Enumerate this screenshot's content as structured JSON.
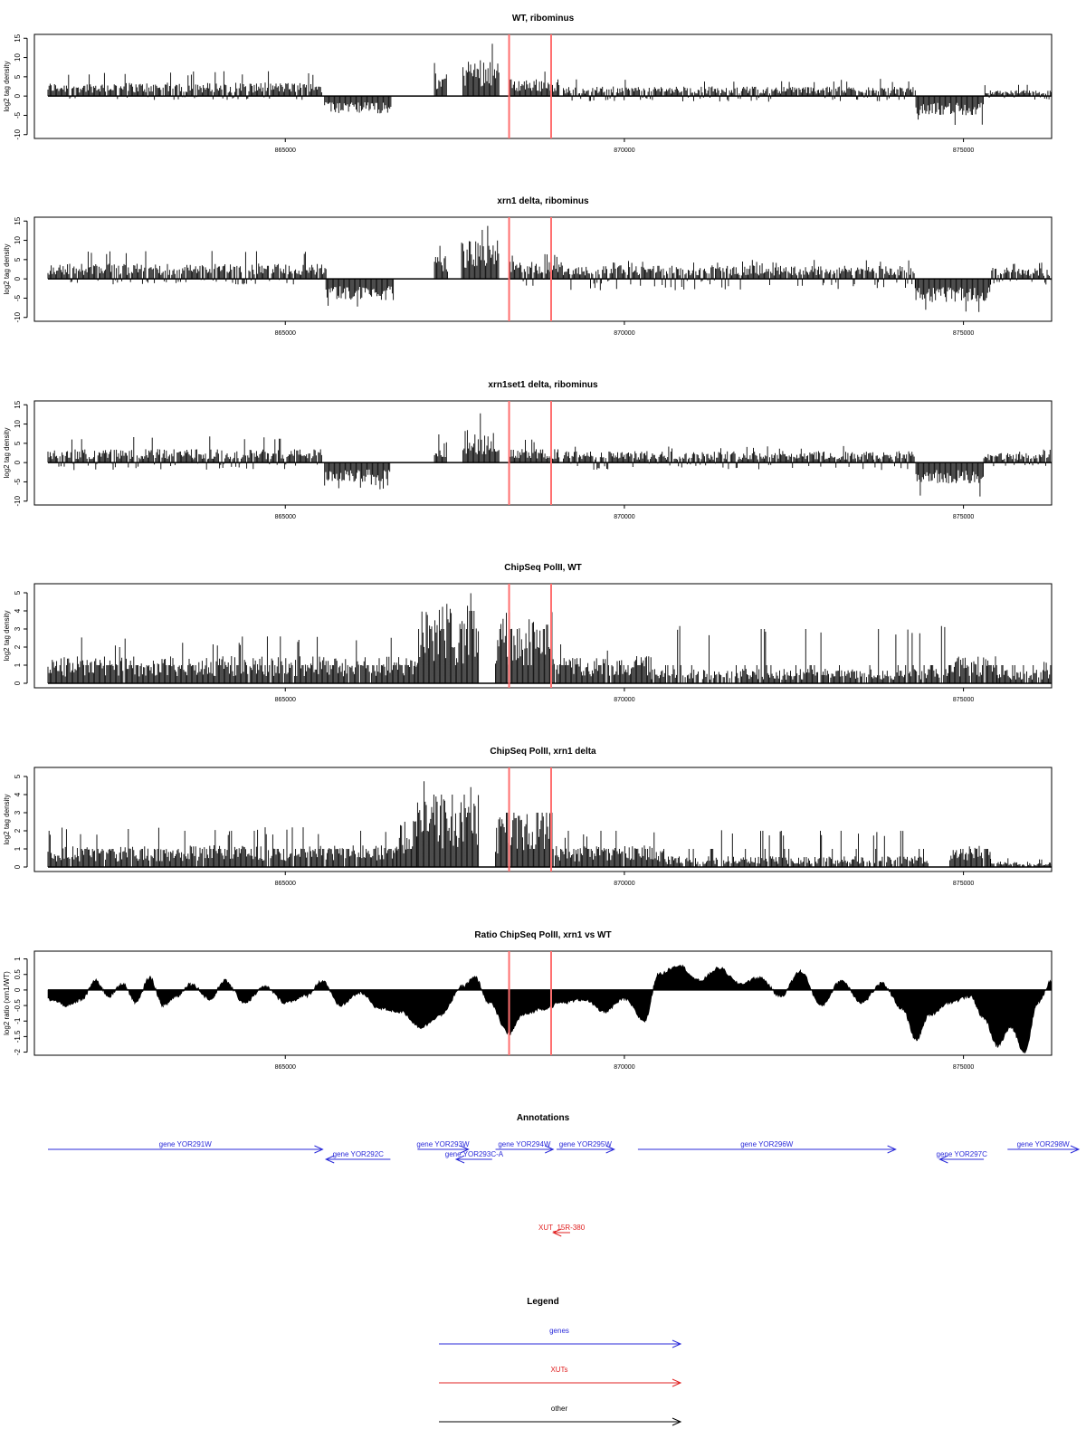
{
  "colors": {
    "signal": "#000000",
    "marker": "#ff6f6f",
    "gene": "#2a2ad9",
    "xut": "#e02020",
    "other": "#000000",
    "frame": "#000000"
  },
  "chart_data": [
    {
      "type": "bar",
      "title": "WT, ribominus",
      "ylabel": "log2 tag density",
      "ylim": [
        -11,
        16
      ],
      "yticks": [
        15,
        10,
        5,
        0,
        -5,
        -10
      ],
      "xlim": [
        861300,
        876300
      ],
      "xticks": [
        865000,
        870000,
        875000
      ],
      "markers": [
        868300,
        868920
      ],
      "segments": [
        {
          "x0": 861500,
          "x1": 865550,
          "min": -1.0,
          "max": 3.5,
          "peak": 6.5
        },
        {
          "x0": 865580,
          "x1": 866570,
          "min": -4.5,
          "max": 0.0,
          "peak": -5.5
        },
        {
          "x0": 867200,
          "x1": 867380,
          "min": 0.0,
          "max": 6.0,
          "peak": 9.0
        },
        {
          "x0": 867620,
          "x1": 868150,
          "min": 0.0,
          "max": 10.0,
          "peak": 15.0
        },
        {
          "x0": 868300,
          "x1": 869050,
          "min": 0.0,
          "max": 4.5,
          "peak": 7.0
        },
        {
          "x0": 869100,
          "x1": 874300,
          "min": -1.5,
          "max": 2.5,
          "peak": 4.5
        },
        {
          "x0": 874300,
          "x1": 875300,
          "min": -5.0,
          "max": 0.0,
          "peak": -7.5
        },
        {
          "x0": 875300,
          "x1": 876300,
          "min": -1.0,
          "max": 1.5,
          "peak": 3.0
        }
      ]
    },
    {
      "type": "bar",
      "title": "xrn1 delta, ribominus",
      "ylabel": "log2 tag density",
      "ylim": [
        -11,
        16
      ],
      "yticks": [
        15,
        10,
        5,
        0,
        -5,
        -10
      ],
      "xlim": [
        861300,
        876300
      ],
      "xticks": [
        865000,
        870000,
        875000
      ],
      "markers": [
        868300,
        868920
      ],
      "segments": [
        {
          "x0": 861500,
          "x1": 865600,
          "min": -1.5,
          "max": 4.0,
          "peak": 7.5
        },
        {
          "x0": 865600,
          "x1": 866600,
          "min": -5.5,
          "max": 0.0,
          "peak": -7.5
        },
        {
          "x0": 867200,
          "x1": 867400,
          "min": 0.0,
          "max": 6.5,
          "peak": 9.5
        },
        {
          "x0": 867600,
          "x1": 868150,
          "min": 0.0,
          "max": 10.0,
          "peak": 14.0
        },
        {
          "x0": 868300,
          "x1": 869100,
          "min": -2.0,
          "max": 4.5,
          "peak": 7.0
        },
        {
          "x0": 869100,
          "x1": 874300,
          "min": -3.0,
          "max": 3.5,
          "peak": 5.0
        },
        {
          "x0": 874300,
          "x1": 875400,
          "min": -6.0,
          "max": 0.0,
          "peak": -9.0
        },
        {
          "x0": 875400,
          "x1": 876300,
          "min": -1.5,
          "max": 3.0,
          "peak": 4.5
        }
      ]
    },
    {
      "type": "bar",
      "title": "xrn1set1 delta, ribominus",
      "ylabel": "log2 tag density",
      "ylim": [
        -11,
        16
      ],
      "yticks": [
        15,
        10,
        5,
        0,
        -5,
        -10
      ],
      "xlim": [
        861300,
        876300
      ],
      "xticks": [
        865000,
        870000,
        875000
      ],
      "markers": [
        868300,
        868920
      ],
      "segments": [
        {
          "x0": 861500,
          "x1": 865550,
          "min": -2.0,
          "max": 3.5,
          "peak": 7.0
        },
        {
          "x0": 865580,
          "x1": 866550,
          "min": -5.0,
          "max": 0.0,
          "peak": -7.0
        },
        {
          "x0": 867200,
          "x1": 867380,
          "min": 0.0,
          "max": 5.5,
          "peak": 8.5
        },
        {
          "x0": 867620,
          "x1": 868150,
          "min": 0.0,
          "max": 8.5,
          "peak": 13.0
        },
        {
          "x0": 868300,
          "x1": 869050,
          "min": 0.0,
          "max": 3.5,
          "peak": 6.0
        },
        {
          "x0": 869100,
          "x1": 874300,
          "min": -2.0,
          "max": 3.0,
          "peak": 4.5
        },
        {
          "x0": 874300,
          "x1": 875300,
          "min": -5.5,
          "max": 0.0,
          "peak": -9.5
        },
        {
          "x0": 875300,
          "x1": 876300,
          "min": -1.0,
          "max": 2.5,
          "peak": 3.5
        }
      ]
    },
    {
      "type": "bar",
      "title": "ChipSeq PolII, WT",
      "ylabel": "log2 tag density",
      "ylim": [
        -0.25,
        5.5
      ],
      "yticks": [
        5,
        4,
        3,
        2,
        1,
        0
      ],
      "xlim": [
        861300,
        876300
      ],
      "xticks": [
        865000,
        870000,
        875000
      ],
      "markers": [
        868300,
        868920
      ],
      "segments": [
        {
          "x0": 861500,
          "x1": 866950,
          "min": 0.0,
          "max": 1.5,
          "peak": 2.6
        },
        {
          "x0": 866950,
          "x1": 867850,
          "min": 0.0,
          "max": 4.3,
          "peak": 5.2
        },
        {
          "x0": 868100,
          "x1": 868950,
          "min": 0.0,
          "max": 3.6,
          "peak": 4.0
        },
        {
          "x0": 868950,
          "x1": 870400,
          "min": 0.0,
          "max": 1.5,
          "peak": 2.2
        },
        {
          "x0": 870400,
          "x1": 874800,
          "min": 0.0,
          "max": 0.8,
          "peak": 3.2
        },
        {
          "x0": 874800,
          "x1": 875500,
          "min": 0.0,
          "max": 1.5,
          "peak": 3.0
        },
        {
          "x0": 875500,
          "x1": 876300,
          "min": 0.0,
          "max": 0.8,
          "peak": 1.2
        }
      ]
    },
    {
      "type": "bar",
      "title": "ChipSeq PolII, xrn1 delta",
      "ylabel": "log2 tag density",
      "ylim": [
        -0.25,
        5.5
      ],
      "yticks": [
        5,
        4,
        3,
        2,
        1,
        0
      ],
      "xlim": [
        861300,
        876300
      ],
      "xticks": [
        865000,
        870000,
        875000
      ],
      "markers": [
        868300,
        868920
      ],
      "segments": [
        {
          "x0": 861500,
          "x1": 866650,
          "min": 0.0,
          "max": 1.2,
          "peak": 2.2
        },
        {
          "x0": 866650,
          "x1": 866950,
          "min": 0.0,
          "max": 1.8,
          "peak": 2.6
        },
        {
          "x0": 866950,
          "x1": 867850,
          "min": 0.0,
          "max": 4.0,
          "peak": 4.8
        },
        {
          "x0": 868100,
          "x1": 868950,
          "min": 0.0,
          "max": 3.0,
          "peak": 3.3
        },
        {
          "x0": 868950,
          "x1": 870600,
          "min": 0.0,
          "max": 1.2,
          "peak": 2.0
        },
        {
          "x0": 870600,
          "x1": 874500,
          "min": 0.0,
          "max": 0.6,
          "peak": 2.1
        },
        {
          "x0": 874800,
          "x1": 875400,
          "min": 0.0,
          "max": 1.2,
          "peak": 1.9
        },
        {
          "x0": 875400,
          "x1": 876300,
          "min": 0.0,
          "max": 0.3,
          "peak": 0.5
        }
      ]
    },
    {
      "type": "area",
      "title": "Ratio ChipSeq PolII, xrn1 vs WT",
      "ylabel": "log2 ratio (xrn1/WT)",
      "ylim": [
        -2.1,
        1.25
      ],
      "yticks": [
        1.0,
        0.5,
        0.0,
        -0.5,
        -1.0,
        -1.5,
        -2.0
      ],
      "xlim": [
        861300,
        876300
      ],
      "xticks": [
        865000,
        870000,
        875000
      ],
      "markers": [
        868300,
        868920
      ],
      "anchors": [
        [
          861500,
          -0.3
        ],
        [
          861800,
          -0.5
        ],
        [
          862000,
          -0.3
        ],
        [
          862200,
          0.3
        ],
        [
          862400,
          -0.2
        ],
        [
          862600,
          0.2
        ],
        [
          862800,
          -0.4
        ],
        [
          863000,
          0.4
        ],
        [
          863200,
          -0.5
        ],
        [
          863400,
          -0.2
        ],
        [
          863600,
          0.2
        ],
        [
          863900,
          -0.3
        ],
        [
          864100,
          0.3
        ],
        [
          864400,
          -0.4
        ],
        [
          864700,
          0.1
        ],
        [
          865000,
          -0.4
        ],
        [
          865300,
          -0.2
        ],
        [
          865550,
          0.3
        ],
        [
          865800,
          -0.5
        ],
        [
          866100,
          -0.1
        ],
        [
          866400,
          -0.6
        ],
        [
          866700,
          -0.7
        ],
        [
          867000,
          -1.2
        ],
        [
          867300,
          -0.8
        ],
        [
          867600,
          0.1
        ],
        [
          867800,
          0.4
        ],
        [
          868000,
          -0.4
        ],
        [
          868300,
          -1.4
        ],
        [
          868500,
          -0.8
        ],
        [
          868800,
          -0.6
        ],
        [
          869100,
          -0.4
        ],
        [
          869400,
          -0.3
        ],
        [
          869700,
          -0.7
        ],
        [
          870000,
          -0.3
        ],
        [
          870300,
          -1.0
        ],
        [
          870500,
          0.5
        ],
        [
          870800,
          0.8
        ],
        [
          871100,
          0.3
        ],
        [
          871400,
          0.7
        ],
        [
          871700,
          0.2
        ],
        [
          872000,
          0.4
        ],
        [
          872300,
          -0.2
        ],
        [
          872600,
          0.6
        ],
        [
          872900,
          -0.5
        ],
        [
          873200,
          0.3
        ],
        [
          873500,
          -0.4
        ],
        [
          873800,
          0.2
        ],
        [
          874100,
          -0.6
        ],
        [
          874300,
          -1.6
        ],
        [
          874500,
          -0.8
        ],
        [
          874800,
          -0.4
        ],
        [
          875100,
          -0.2
        ],
        [
          875300,
          -0.9
        ],
        [
          875500,
          -1.8
        ],
        [
          875700,
          -1.2
        ],
        [
          875900,
          -2.0
        ],
        [
          876100,
          -0.4
        ],
        [
          876300,
          0.3
        ]
      ]
    }
  ],
  "titles": [
    "WT, ribominus",
    "xrn1 delta, ribominus",
    "xrn1set1 delta, ribominus",
    "ChipSeq PolII, WT",
    "ChipSeq PolII, xrn1 delta",
    "Ratio ChipSeq PolII, xrn1 vs WT"
  ],
  "annotations": {
    "title": "Annotations",
    "genes": [
      {
        "label": "gene YOR291W",
        "x0": 861500,
        "x1": 865550,
        "dir": "right",
        "row": 0
      },
      {
        "label": "gene YOR292C",
        "x0": 865600,
        "x1": 866550,
        "dir": "left",
        "row": 1
      },
      {
        "label": "gene YOR293W",
        "x0": 866950,
        "x1": 867700,
        "dir": "right",
        "row": 0
      },
      {
        "label": "gene YOR293C-A",
        "x0": 867520,
        "x1": 868050,
        "dir": "left",
        "row": 1
      },
      {
        "label": "gene YOR294W",
        "x0": 868100,
        "x1": 868950,
        "dir": "right",
        "row": 0
      },
      {
        "label": "gene YOR295W",
        "x0": 869000,
        "x1": 869850,
        "dir": "right",
        "row": 0
      },
      {
        "label": "gene YOR296W",
        "x0": 870200,
        "x1": 874000,
        "dir": "right",
        "row": 0
      },
      {
        "label": "gene YOR297C",
        "x0": 874650,
        "x1": 875300,
        "dir": "left",
        "row": 1
      },
      {
        "label": "gene YOR298W",
        "x0": 875650,
        "x1": 876700,
        "dir": "right",
        "row": 0
      }
    ],
    "xuts": [
      {
        "label": "XUT_15R-380",
        "x0": 868950,
        "x1": 869200,
        "dir": "left"
      }
    ]
  },
  "legend": {
    "title": "Legend",
    "items": [
      {
        "label": "genes",
        "color": "#2a2ad9"
      },
      {
        "label": "XUTs",
        "color": "#e02020"
      },
      {
        "label": "other",
        "color": "#000000"
      }
    ]
  }
}
